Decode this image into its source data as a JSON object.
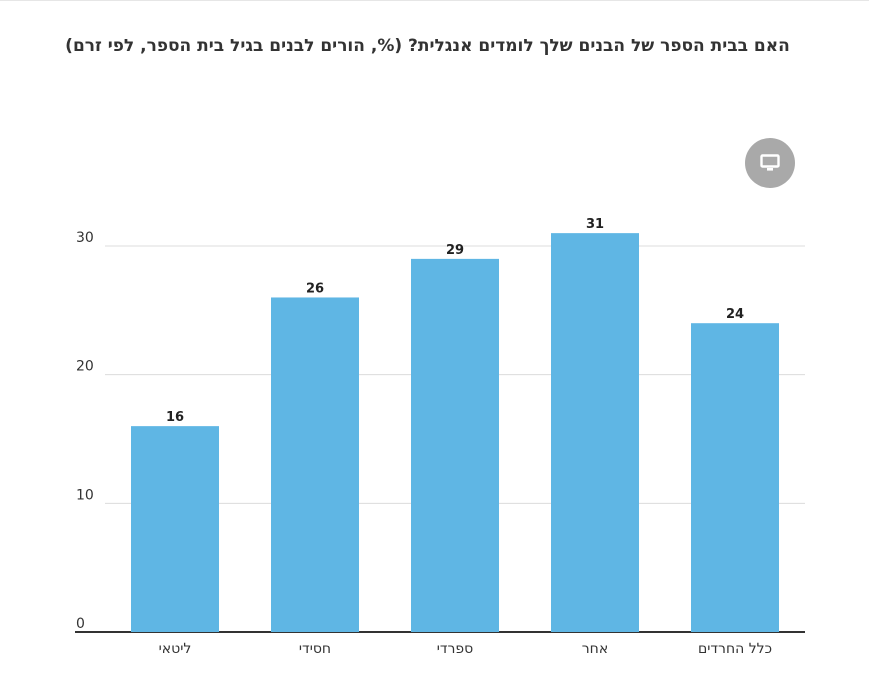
{
  "chart_data": {
    "type": "bar",
    "title": "האם בבית הספר של הבנים שלך לומדים אנגלית? (%, הורים לבנים בגיל בית הספר, לפי זרם)",
    "categories": [
      "ליטאי",
      "חסידי",
      "ספרדי",
      "אחר",
      "כלל החרדים"
    ],
    "values": [
      16,
      26,
      29,
      31,
      24
    ],
    "ylim": [
      0,
      30
    ],
    "yticks": [
      0,
      10,
      20,
      30
    ],
    "xlabel": "",
    "ylabel": "",
    "grid": true,
    "bar_color": "#5fb6e4",
    "axis_color": "#333333",
    "grid_color": "#dcdcdc"
  },
  "controls": {
    "screen_icon": "monitor-icon"
  }
}
